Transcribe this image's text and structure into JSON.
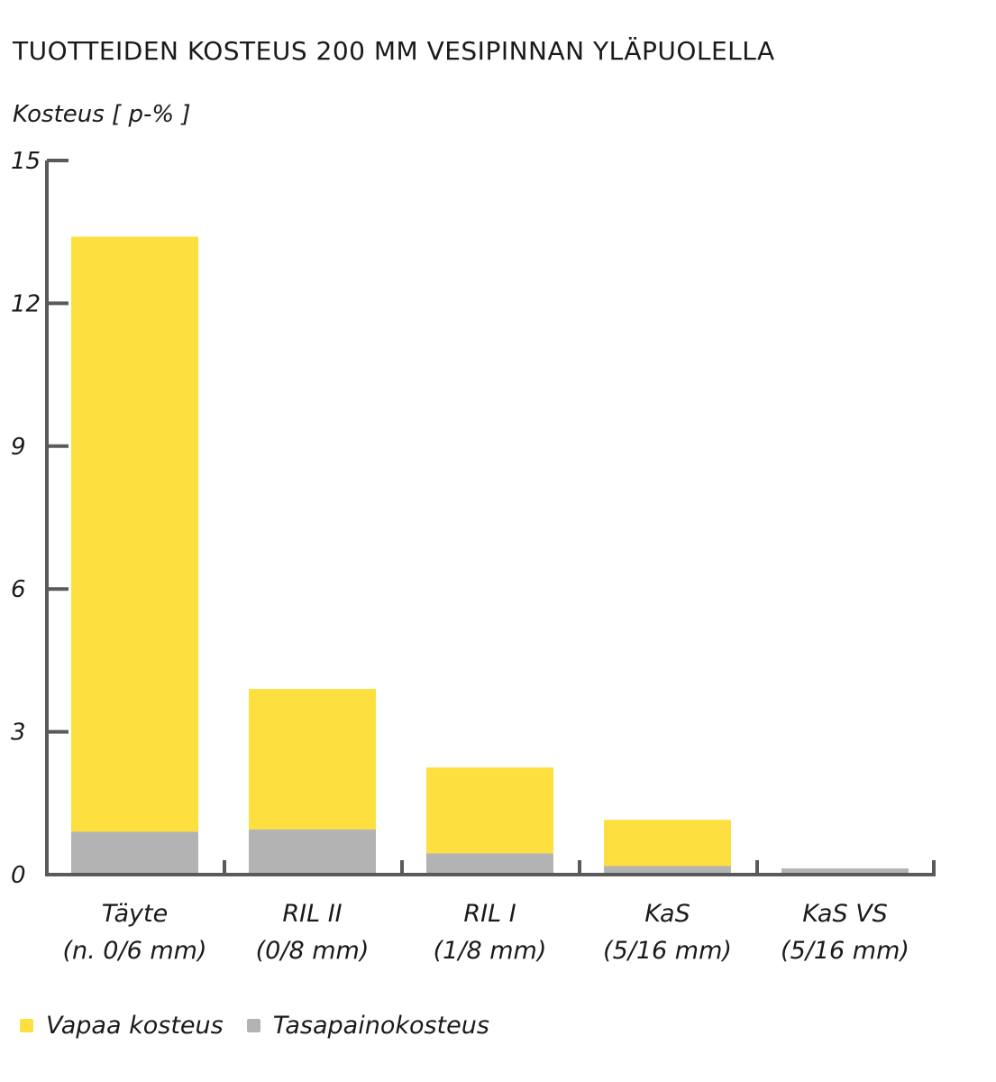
{
  "chart_data": {
    "type": "bar",
    "stacked": true,
    "title": "TUOTTEIDEN KOSTEUS 200 MM VESIPINNAN YLÄPUOLELLA",
    "ylabel": "Kosteus [ p-% ]",
    "xlabel": "",
    "ylim": [
      0,
      15
    ],
    "yticks": [
      "0",
      "3",
      "6",
      "9",
      "12",
      "15"
    ],
    "categories": [
      {
        "line1": "Täyte",
        "line2": "(n. 0/6 mm)"
      },
      {
        "line1": "RIL II",
        "line2": "(0/8 mm)"
      },
      {
        "line1": "RIL I",
        "line2": "(1/8 mm)"
      },
      {
        "line1": "KaS",
        "line2": "(5/16 mm)"
      },
      {
        "line1": "KaS VS",
        "line2": "(5/16 mm)"
      }
    ],
    "series": [
      {
        "name": "Tasapainokosteus",
        "color": "#b3b3b3",
        "values": [
          0.9,
          0.95,
          0.45,
          0.18,
          0.13
        ]
      },
      {
        "name": "Vapaa kosteus",
        "color": "#fddf3f",
        "values": [
          12.5,
          2.95,
          1.8,
          0.97,
          0.0
        ]
      }
    ],
    "legend": [
      {
        "name": "Vapaa kosteus",
        "color": "#fddf3f"
      },
      {
        "name": "Tasapainokosteus",
        "color": "#b3b3b3"
      }
    ],
    "legend_position": "bottom-left",
    "grid": false,
    "axis_color": "#5a5a5a"
  }
}
